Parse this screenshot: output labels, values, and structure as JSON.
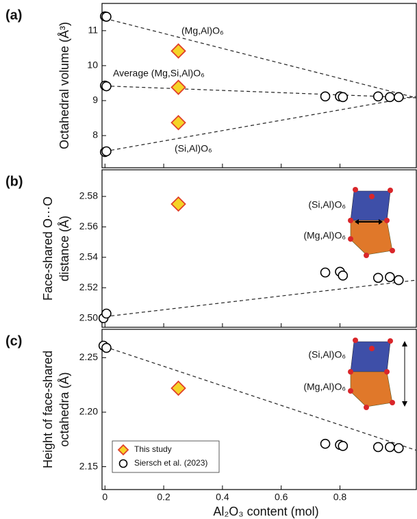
{
  "chart_data": [
    {
      "type": "scatter",
      "panel_label": "(a)",
      "ylabel": [
        "Octahedral volume (Å³)"
      ],
      "xlim": [
        -0.01,
        1.06
      ],
      "ylim": [
        7.08,
        11.78
      ],
      "yticks": [
        8,
        9,
        10,
        11
      ],
      "series": [
        {
          "color": "#f5d327",
          "edge": "#e0402a",
          "marker": "diamond",
          "x": [
            0.25,
            0.25,
            0.25
          ],
          "values": [
            10.42,
            9.38,
            8.37
          ]
        },
        {
          "color": "#ffffff",
          "edge": "#000000",
          "marker": "circle",
          "x": [
            0,
            0.005,
            0,
            0.005,
            0,
            0.005,
            0.75,
            0.8,
            0.81,
            0.93,
            0.97,
            1.0
          ],
          "values": [
            11.41,
            11.4,
            9.43,
            9.41,
            7.53,
            7.55,
            9.12,
            9.12,
            9.1,
            9.12,
            9.1,
            9.1
          ]
        }
      ],
      "trend_lines": [
        {
          "label": "(Mg,Al)O₆",
          "x": [
            0,
            1.06
          ],
          "y": [
            11.35,
            9.08
          ]
        },
        {
          "label": "Average (Mg,Si,Al)O₆",
          "x": [
            0,
            1.06
          ],
          "y": [
            9.42,
            9.08
          ]
        },
        {
          "label": "(Si,Al)O₆",
          "x": [
            0,
            1.06
          ],
          "y": [
            7.55,
            9.12
          ]
        }
      ]
    },
    {
      "type": "scatter",
      "panel_label": "(b)",
      "ylabel": [
        "Face-shared O···O",
        "distance (Å)"
      ],
      "xlim": [
        -0.01,
        1.06
      ],
      "ylim": [
        2.494,
        2.5975
      ],
      "yticks": [
        {
          "value": 2.5,
          "label": "2.50"
        },
        2.52,
        2.54,
        2.56,
        2.58
      ],
      "series": [
        {
          "color": "#f5d327",
          "edge": "#e0402a",
          "marker": "diamond",
          "x": [
            0.25
          ],
          "values": [
            2.575
          ]
        },
        {
          "color": "#ffffff",
          "edge": "#000000",
          "marker": "circle",
          "x": [
            -0.005,
            0.005,
            0.75,
            0.8,
            0.81,
            0.93,
            0.97,
            1.0
          ],
          "values": [
            2.5,
            2.503,
            2.53,
            2.5305,
            2.528,
            2.5265,
            2.527,
            2.525
          ]
        }
      ],
      "trend_lines": [
        {
          "x": [
            0,
            1.06
          ],
          "y": [
            2.501,
            2.525
          ]
        }
      ],
      "inset_labels": [
        "(Si,Al)O₆",
        "(Mg,Al)O₆"
      ]
    },
    {
      "type": "scatter",
      "panel_label": "(c)",
      "ylabel": [
        "Height of face-shared",
        "octahedra (Å)"
      ],
      "xlabel": "Al₂O₃ content (mol)",
      "xlim": [
        -0.01,
        1.06
      ],
      "ylim": [
        2.129,
        2.276
      ],
      "xticks": [
        0,
        0.2,
        0.4,
        0.6,
        0.8
      ],
      "yticks": [
        2.15,
        {
          "value": 2.2,
          "label": "2.20"
        },
        2.25
      ],
      "legend": "lower left",
      "series": [
        {
          "name": "This study",
          "color": "#f5d327",
          "edge": "#e0402a",
          "marker": "diamond",
          "x": [
            0.25
          ],
          "values": [
            2.222
          ]
        },
        {
          "name": "Siersch et al. (2023)",
          "color": "#ffffff",
          "edge": "#000000",
          "marker": "circle",
          "x": [
            -0.005,
            0.005,
            0.75,
            0.8,
            0.81,
            0.93,
            0.97,
            1.0
          ],
          "values": [
            2.261,
            2.259,
            2.171,
            2.17,
            2.169,
            2.168,
            2.168,
            2.167
          ]
        }
      ],
      "trend_lines": [
        {
          "x": [
            0,
            1.06
          ],
          "y": [
            2.26,
            2.165
          ]
        }
      ],
      "inset_labels": [
        "(Si,Al)O₆",
        "(Mg,Al)O₆"
      ]
    }
  ]
}
